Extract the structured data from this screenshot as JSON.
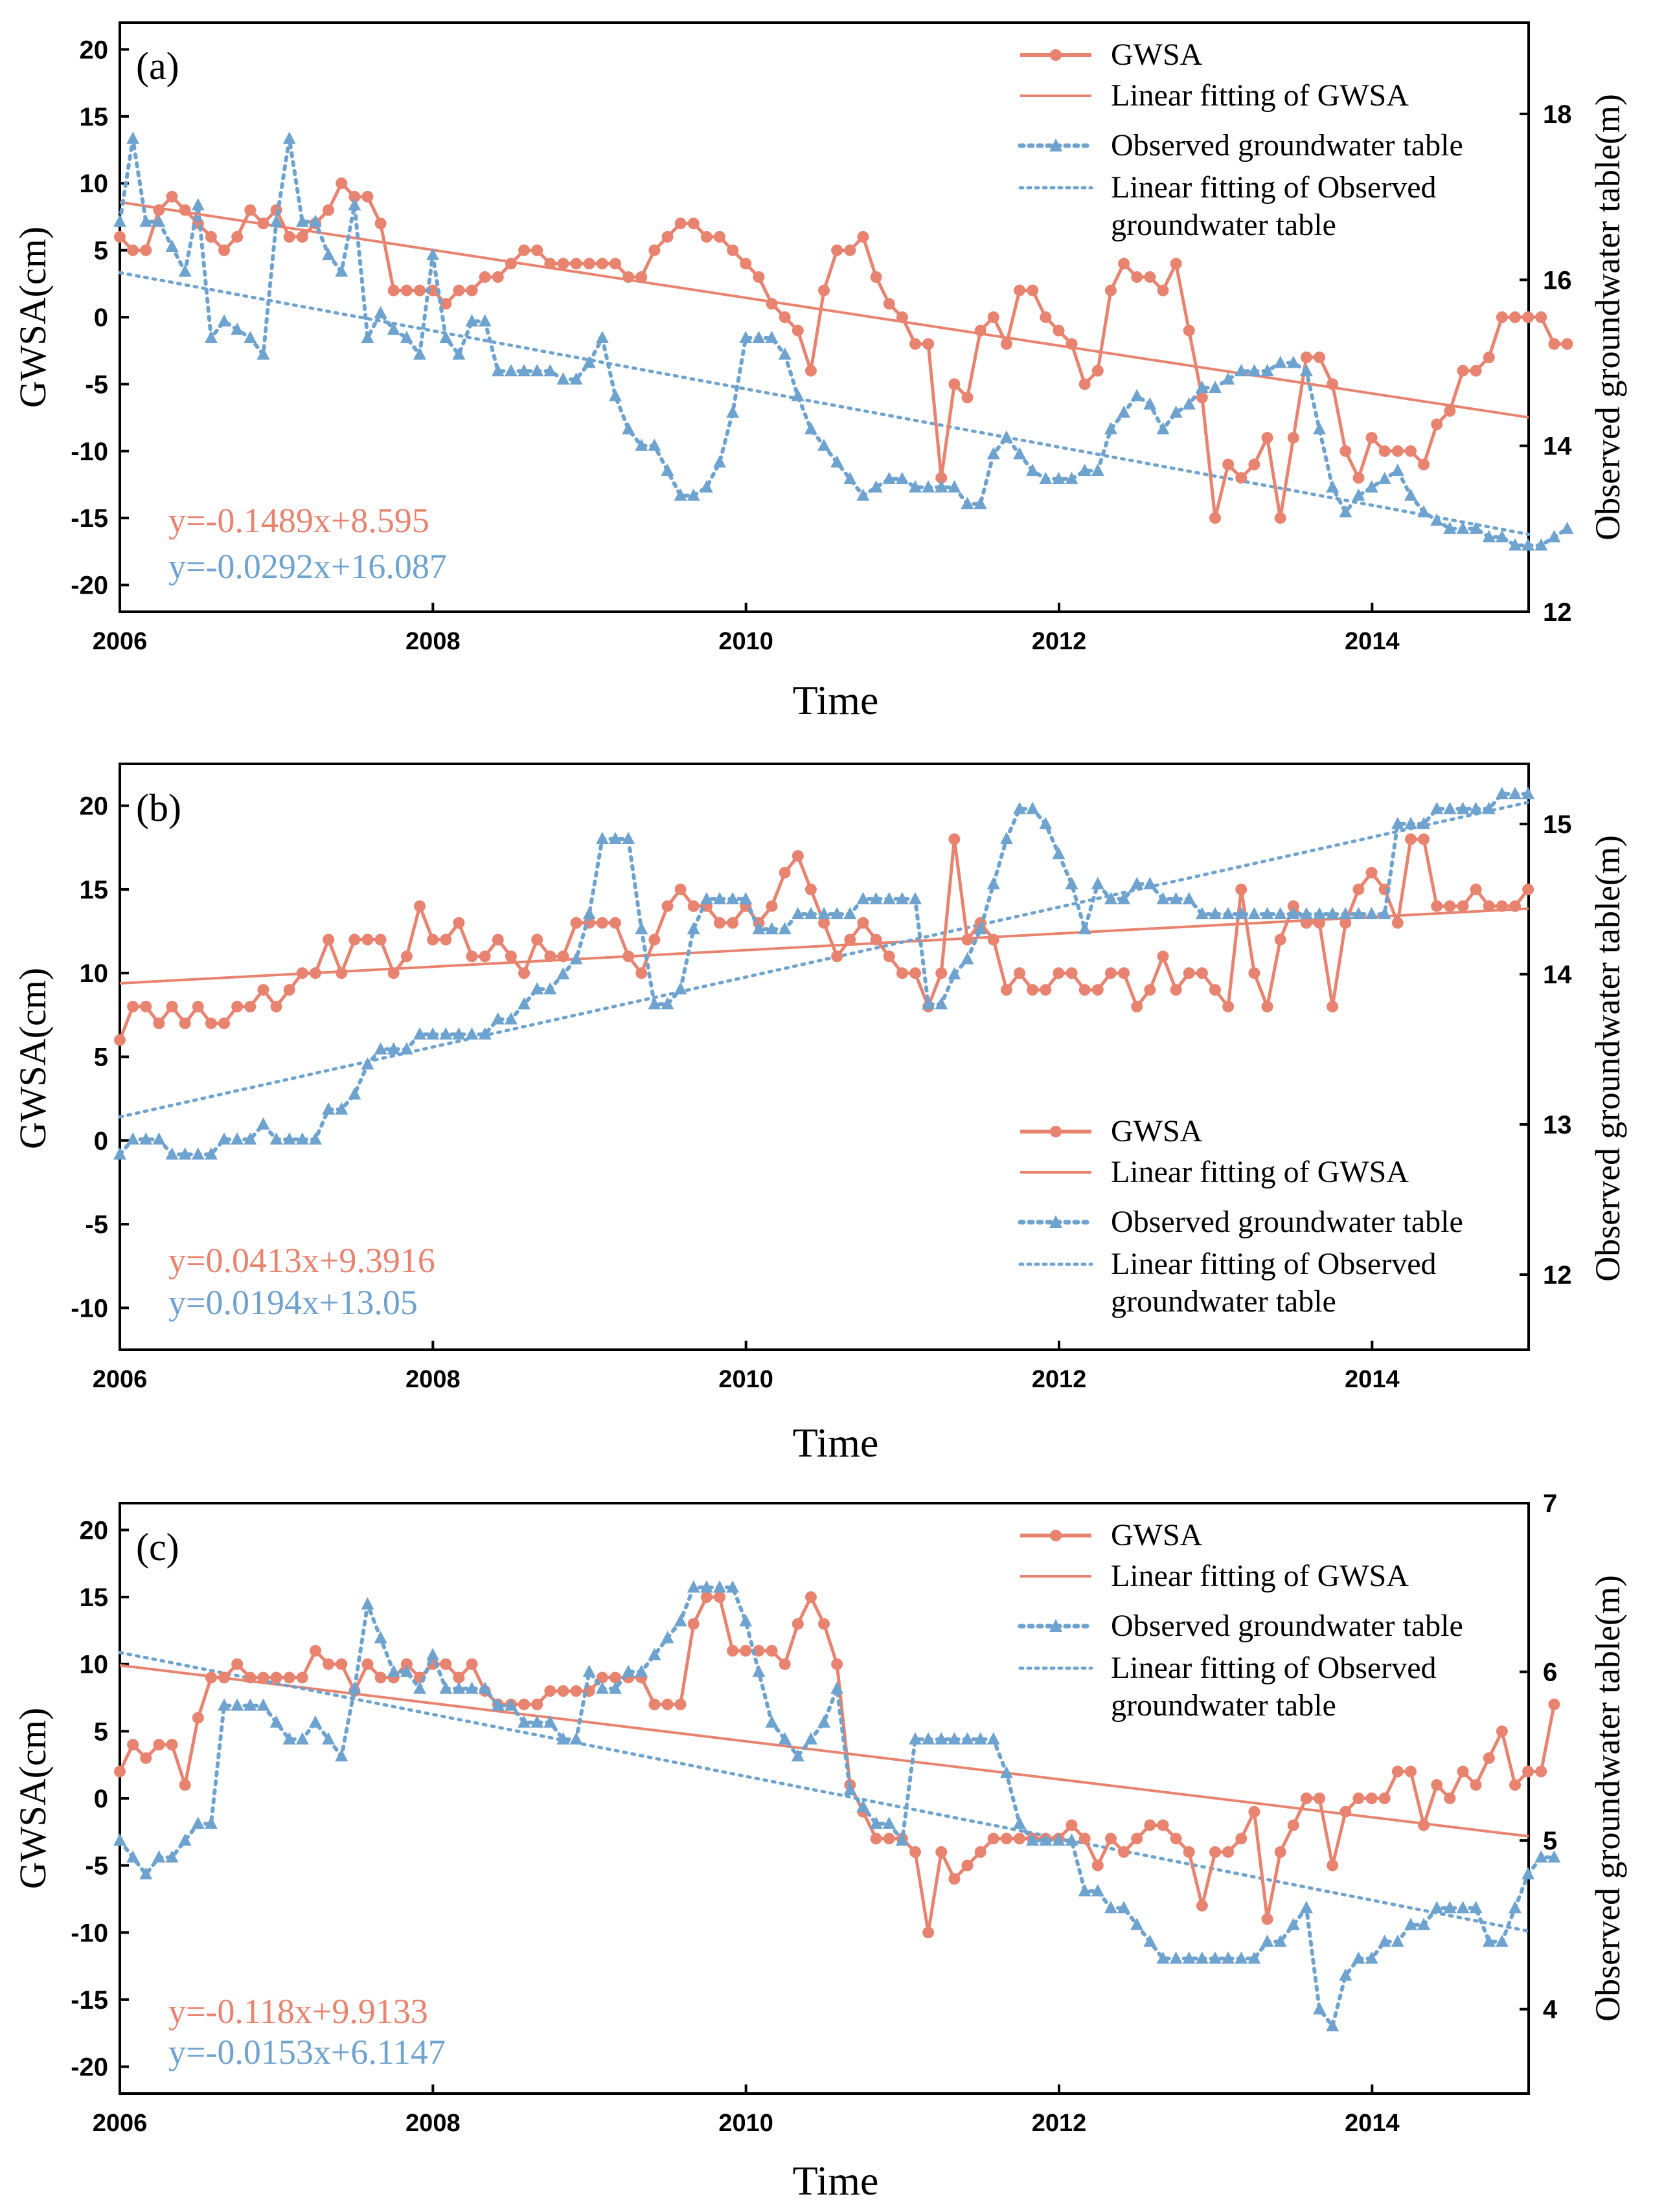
{
  "colors": {
    "gwsa": "#E8836F",
    "obs": "#6FA3CF",
    "axis": "#000000"
  },
  "legend_labels": {
    "gwsa": "GWSA",
    "gwsa_fit": "Linear fitting of GWSA",
    "obs": "Observed groundwater table",
    "obs_fit_line1": "Linear fitting of Observed",
    "obs_fit_line2": "groundwater table"
  },
  "chart_data": [
    {
      "type": "line",
      "panel_label": "(a)",
      "xlabel": "Time",
      "ylabel": "GWSA(cm)",
      "y2label": "Observed groundwater table(m)",
      "xlim": [
        2006,
        2015
      ],
      "xticks": [
        2006,
        2008,
        2010,
        2012,
        2014
      ],
      "ylim": [
        -22,
        22
      ],
      "yticks": [
        -20,
        -15,
        -10,
        -5,
        0,
        5,
        10,
        15,
        20
      ],
      "y2lim": [
        12,
        19.1
      ],
      "y2ticks": [
        12,
        14,
        16,
        18
      ],
      "legend_position": "top-right",
      "series": [
        {
          "name": "GWSA",
          "axis": "left",
          "x_start": 2006.0,
          "x_step": 0.0833,
          "values": [
            6,
            5,
            5,
            8,
            9,
            8,
            7,
            6,
            5,
            6,
            8,
            7,
            8,
            6,
            6,
            7,
            8,
            10,
            9,
            9,
            7,
            2,
            2,
            2,
            2,
            1,
            2,
            2,
            3,
            3,
            4,
            5,
            5,
            4,
            4,
            4,
            4,
            4,
            4,
            3,
            3,
            5,
            6,
            7,
            7,
            6,
            6,
            5,
            4,
            3,
            1,
            0,
            -1,
            -4,
            2,
            5,
            5,
            6,
            3,
            1,
            0,
            -2,
            -2,
            -12,
            -5,
            -6,
            -1,
            0,
            -2,
            2,
            2,
            0,
            -1,
            -2,
            -5,
            -4,
            2,
            4,
            3,
            3,
            2,
            4,
            -1,
            -6,
            -15,
            -11,
            -12,
            -11,
            -9,
            -15,
            -9,
            -3,
            -3,
            -5,
            -10,
            -12,
            -9,
            -10,
            -10,
            -10,
            -11,
            -8,
            -7,
            -4,
            -4,
            -3,
            0,
            0,
            0,
            0,
            -2,
            -2
          ]
        },
        {
          "name": "Observed groundwater table",
          "axis": "right",
          "x_start": 2006.0,
          "x_step": 0.0833,
          "values": [
            16.7,
            17.7,
            16.7,
            16.7,
            16.4,
            16.1,
            16.9,
            15.3,
            15.5,
            15.4,
            15.3,
            15.1,
            16.7,
            17.7,
            16.7,
            16.7,
            16.3,
            16.1,
            16.9,
            15.3,
            15.6,
            15.4,
            15.3,
            15.1,
            16.3,
            15.3,
            15.1,
            15.5,
            15.5,
            14.9,
            14.9,
            14.9,
            14.9,
            14.9,
            14.8,
            14.8,
            15.0,
            15.3,
            14.6,
            14.2,
            14.0,
            14.0,
            13.7,
            13.4,
            13.4,
            13.5,
            13.8,
            14.4,
            15.3,
            15.3,
            15.3,
            15.1,
            14.6,
            14.2,
            14.0,
            13.8,
            13.6,
            13.4,
            13.5,
            13.6,
            13.6,
            13.5,
            13.5,
            13.5,
            13.5,
            13.3,
            13.3,
            13.9,
            14.1,
            13.9,
            13.7,
            13.6,
            13.6,
            13.6,
            13.7,
            13.7,
            14.2,
            14.4,
            14.6,
            14.5,
            14.2,
            14.4,
            14.5,
            14.7,
            14.7,
            14.8,
            14.9,
            14.9,
            14.9,
            15.0,
            15.0,
            14.9,
            14.2,
            13.5,
            13.2,
            13.4,
            13.5,
            13.6,
            13.7,
            13.4,
            13.2,
            13.1,
            13.0,
            13.0,
            13.0,
            12.9,
            12.9,
            12.8,
            12.8,
            12.8,
            12.9,
            13.0
          ]
        }
      ],
      "fits": [
        {
          "name": "Linear fitting of GWSA",
          "axis": "left",
          "slope": -0.1489,
          "intercept": 8.595,
          "label": "y=-0.1489x+8.595"
        },
        {
          "name": "Linear fitting of Observed groundwater table",
          "axis": "right",
          "slope": -0.0292,
          "intercept": 16.087,
          "label": "y=-0.0292x+16.087"
        }
      ]
    },
    {
      "type": "line",
      "panel_label": "(b)",
      "xlabel": "Time",
      "ylabel": "GWSA(cm)",
      "y2label": "Observed groundwater table(m)",
      "xlim": [
        2006,
        2015
      ],
      "xticks": [
        2006,
        2008,
        2010,
        2012,
        2014
      ],
      "ylim": [
        -12.5,
        22.5
      ],
      "yticks": [
        -10,
        -5,
        0,
        5,
        10,
        15,
        20
      ],
      "y2lim": [
        11.5,
        15.4
      ],
      "y2ticks": [
        12,
        13,
        14,
        15
      ],
      "legend_position": "center-right",
      "series": [
        {
          "name": "GWSA",
          "axis": "left",
          "x_start": 2006.0,
          "x_step": 0.0833,
          "values": [
            6,
            8,
            8,
            7,
            8,
            7,
            8,
            7,
            7,
            8,
            8,
            9,
            8,
            9,
            10,
            10,
            12,
            10,
            12,
            12,
            12,
            10,
            11,
            14,
            12,
            12,
            13,
            11,
            11,
            12,
            11,
            10,
            12,
            11,
            11,
            13,
            13,
            13,
            13,
            11,
            10,
            12,
            14,
            15,
            14,
            14,
            13,
            13,
            14,
            13,
            14,
            16,
            17,
            15,
            13,
            11,
            12,
            13,
            12,
            11,
            10,
            10,
            8,
            10,
            18,
            12,
            13,
            12,
            9,
            10,
            9,
            9,
            10,
            10,
            9,
            9,
            10,
            10,
            8,
            9,
            11,
            9,
            10,
            10,
            9,
            8,
            15,
            10,
            8,
            12,
            14,
            13,
            13,
            8,
            13,
            15,
            16,
            15,
            13,
            18,
            18,
            14,
            14,
            14,
            15,
            14,
            14,
            14,
            15
          ]
        },
        {
          "name": "Observed groundwater table",
          "axis": "right",
          "x_start": 2006.0,
          "x_step": 0.0833,
          "values": [
            12.8,
            12.9,
            12.9,
            12.9,
            12.8,
            12.8,
            12.8,
            12.8,
            12.9,
            12.9,
            12.9,
            13.0,
            12.9,
            12.9,
            12.9,
            12.9,
            13.1,
            13.1,
            13.2,
            13.4,
            13.5,
            13.5,
            13.5,
            13.6,
            13.6,
            13.6,
            13.6,
            13.6,
            13.6,
            13.7,
            13.7,
            13.8,
            13.9,
            13.9,
            14.0,
            14.1,
            14.4,
            14.9,
            14.9,
            14.9,
            14.3,
            13.8,
            13.8,
            13.9,
            14.3,
            14.5,
            14.5,
            14.5,
            14.5,
            14.3,
            14.3,
            14.3,
            14.4,
            14.4,
            14.4,
            14.4,
            14.4,
            14.5,
            14.5,
            14.5,
            14.5,
            14.5,
            13.8,
            13.8,
            14.0,
            14.1,
            14.3,
            14.6,
            14.9,
            15.1,
            15.1,
            15.0,
            14.8,
            14.6,
            14.3,
            14.6,
            14.5,
            14.5,
            14.6,
            14.6,
            14.5,
            14.5,
            14.5,
            14.4,
            14.4,
            14.4,
            14.4,
            14.4,
            14.4,
            14.4,
            14.4,
            14.4,
            14.4,
            14.4,
            14.4,
            14.4,
            14.4,
            14.4,
            15.0,
            15.0,
            15.0,
            15.1,
            15.1,
            15.1,
            15.1,
            15.1,
            15.2,
            15.2,
            15.2
          ]
        }
      ],
      "fits": [
        {
          "name": "Linear fitting of GWSA",
          "axis": "left",
          "slope": 0.0413,
          "intercept": 9.3916,
          "label": "y=0.0413x+9.3916"
        },
        {
          "name": "Linear fitting of Observed groundwater table",
          "axis": "right",
          "slope": 0.0194,
          "intercept": 13.05,
          "label": "y=0.0194x+13.05"
        }
      ]
    },
    {
      "type": "line",
      "panel_label": "(c)",
      "xlabel": "Time",
      "ylabel": "GWSA(cm)",
      "y2label": "Observed groundwater table(m)",
      "xlim": [
        2006,
        2015
      ],
      "xticks": [
        2006,
        2008,
        2010,
        2012,
        2014
      ],
      "ylim": [
        -22,
        22
      ],
      "yticks": [
        -20,
        -15,
        -10,
        -5,
        0,
        5,
        10,
        15,
        20
      ],
      "y2lim": [
        3.5,
        7.0
      ],
      "y2ticks": [
        4,
        5,
        6,
        7
      ],
      "legend_position": "top-right",
      "series": [
        {
          "name": "GWSA",
          "axis": "left",
          "x_start": 2006.0,
          "x_step": 0.0833,
          "values": [
            2,
            4,
            3,
            4,
            4,
            1,
            6,
            9,
            9,
            10,
            9,
            9,
            9,
            9,
            9,
            11,
            10,
            10,
            8,
            10,
            9,
            9,
            10,
            9,
            10,
            10,
            9,
            10,
            8,
            7,
            7,
            7,
            7,
            8,
            8,
            8,
            8,
            9,
            9,
            9,
            9,
            7,
            7,
            7,
            13,
            15,
            15,
            11,
            11,
            11,
            11,
            10,
            13,
            15,
            13,
            10,
            1,
            -1,
            -3,
            -3,
            -3,
            -4,
            -10,
            -4,
            -6,
            -5,
            -4,
            -3,
            -3,
            -3,
            -3,
            -3,
            -3,
            -2,
            -3,
            -5,
            -3,
            -4,
            -3,
            -2,
            -2,
            -3,
            -4,
            -8,
            -4,
            -4,
            -3,
            -1,
            -9,
            -4,
            -2,
            0,
            0,
            -5,
            -1,
            0,
            0,
            0,
            2,
            2,
            -2,
            1,
            0,
            2,
            1,
            3,
            5,
            1,
            2,
            2,
            7
          ]
        },
        {
          "name": "Observed groundwater table",
          "axis": "right",
          "x_start": 2006.0,
          "x_step": 0.0833,
          "values": [
            5.0,
            4.9,
            4.8,
            4.9,
            4.9,
            5.0,
            5.1,
            5.1,
            5.8,
            5.8,
            5.8,
            5.8,
            5.7,
            5.6,
            5.6,
            5.7,
            5.6,
            5.5,
            5.9,
            6.4,
            6.2,
            6.0,
            6.0,
            5.9,
            6.1,
            5.9,
            5.9,
            5.9,
            5.9,
            5.8,
            5.8,
            5.7,
            5.7,
            5.7,
            5.6,
            5.6,
            6.0,
            5.9,
            5.9,
            6.0,
            6.0,
            6.1,
            6.2,
            6.3,
            6.5,
            6.5,
            6.5,
            6.5,
            6.3,
            6.0,
            5.7,
            5.6,
            5.5,
            5.6,
            5.7,
            5.9,
            5.3,
            5.2,
            5.1,
            5.1,
            5.0,
            5.6,
            5.6,
            5.6,
            5.6,
            5.6,
            5.6,
            5.6,
            5.4,
            5.1,
            5.0,
            5.0,
            5.0,
            5.0,
            4.7,
            4.7,
            4.6,
            4.6,
            4.5,
            4.4,
            4.3,
            4.3,
            4.3,
            4.3,
            4.3,
            4.3,
            4.3,
            4.3,
            4.4,
            4.4,
            4.5,
            4.6,
            4.0,
            3.9,
            4.2,
            4.3,
            4.3,
            4.4,
            4.4,
            4.5,
            4.5,
            4.6,
            4.6,
            4.6,
            4.6,
            4.4,
            4.4,
            4.6,
            4.8,
            4.9,
            4.9
          ]
        }
      ],
      "fits": [
        {
          "name": "Linear fitting of GWSA",
          "axis": "left",
          "slope": -0.118,
          "intercept": 9.9133,
          "label": "y=-0.118x+9.9133"
        },
        {
          "name": "Linear fitting of Observed groundwater table",
          "axis": "right",
          "slope": -0.0153,
          "intercept": 6.1147,
          "label": "y=-0.0153x+6.1147"
        }
      ]
    }
  ]
}
